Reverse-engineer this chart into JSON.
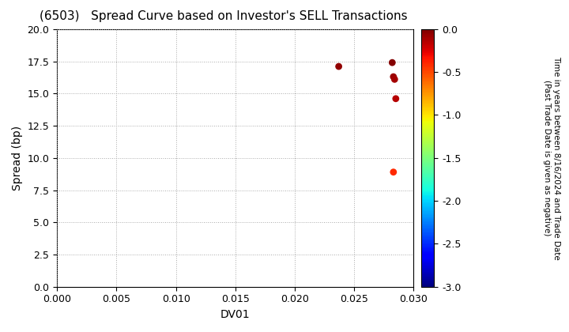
{
  "title": "(6503)   Spread Curve based on Investor's SELL Transactions",
  "xlabel": "DV01",
  "ylabel": "Spread (bp)",
  "xlim": [
    0.0,
    0.03
  ],
  "ylim": [
    0.0,
    20.0
  ],
  "xticks": [
    0.0,
    0.005,
    0.01,
    0.015,
    0.02,
    0.025,
    0.03
  ],
  "ytick_vals": [
    0.0,
    2.5,
    5.0,
    7.5,
    10.0,
    12.5,
    15.0,
    17.5,
    20.0
  ],
  "ytick_labels": [
    "0.0",
    "2.5",
    "5.0",
    "7.5",
    "10.0",
    "12.5",
    "15.0",
    "17.5",
    "20.0"
  ],
  "colorbar_label_line1": "Time in years between 8/16/2024 and Trade Date",
  "colorbar_label_line2": "(Past Trade Date is given as negative)",
  "colorbar_vmin": -3.0,
  "colorbar_vmax": 0.0,
  "colorbar_ticks": [
    0.0,
    -0.5,
    -1.0,
    -1.5,
    -2.0,
    -2.5,
    -3.0
  ],
  "scatter_x": [
    0.0237,
    0.0282,
    0.0283,
    0.0284,
    0.0285,
    0.0283
  ],
  "scatter_y": [
    17.1,
    17.4,
    16.3,
    16.1,
    14.6,
    8.9
  ],
  "scatter_c": [
    -0.05,
    -0.02,
    -0.08,
    -0.1,
    -0.15,
    -0.4
  ],
  "marker_size": 40,
  "background_color": "#ffffff",
  "grid_color": "#aaaaaa",
  "title_fontsize": 11,
  "axis_fontsize": 10,
  "tick_fontsize": 9
}
